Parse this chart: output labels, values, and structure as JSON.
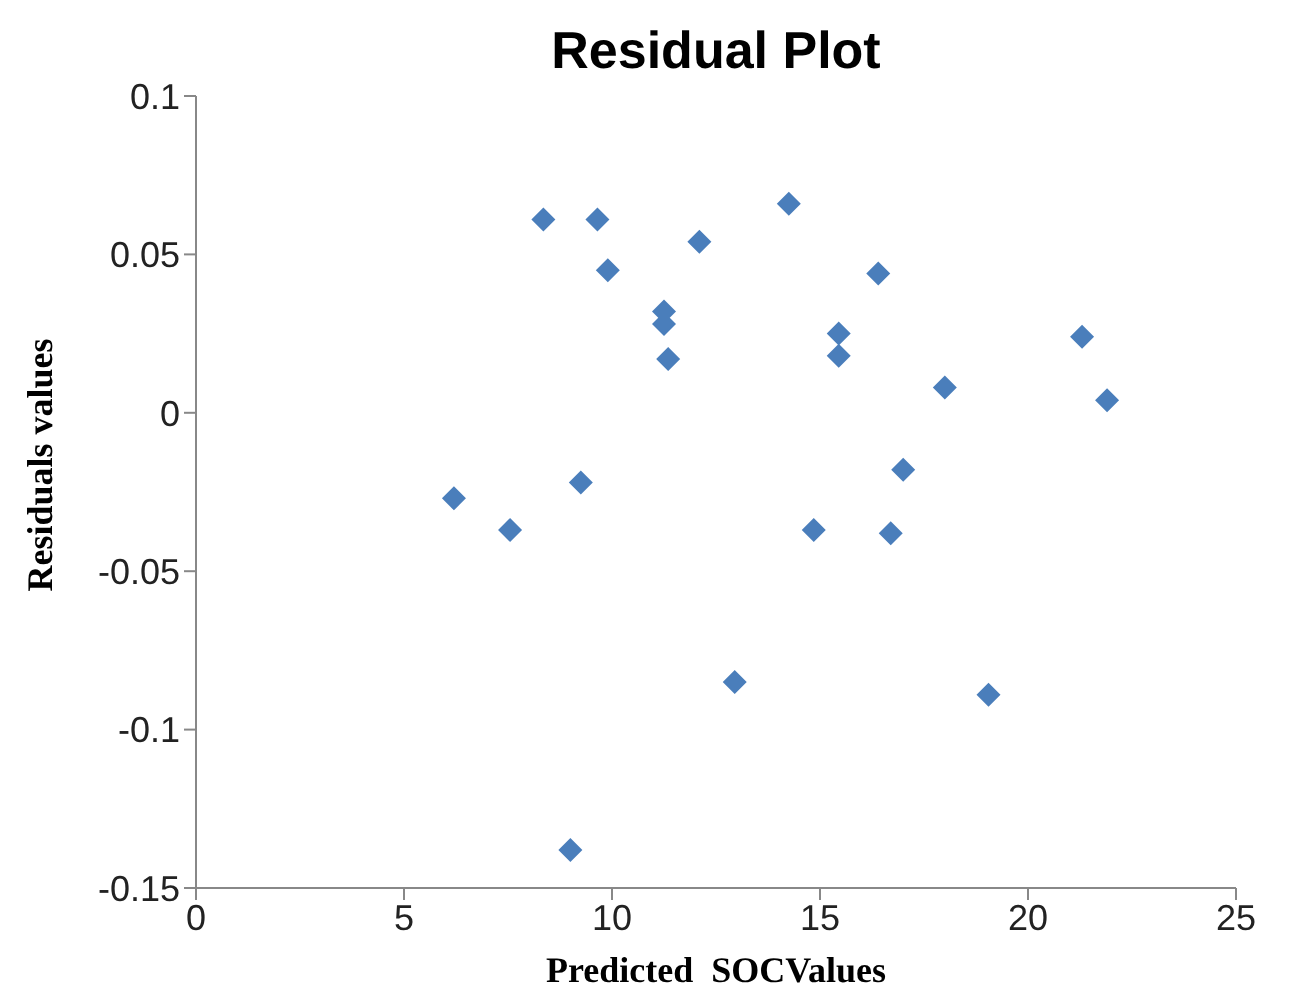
{
  "chart_data": {
    "type": "scatter",
    "title": "Residual Plot",
    "xlabel": "Predicted  SOCValues",
    "ylabel": "Residuals values",
    "marker": "diamond",
    "grid": false,
    "legend": false,
    "xlim": [
      0,
      25
    ],
    "xticks": [
      0,
      5,
      10,
      15,
      20,
      25
    ],
    "ylim": [
      -0.15,
      0.1
    ],
    "yticks": [
      -0.15,
      -0.1,
      -0.05,
      0,
      0.05,
      0.1
    ],
    "series": [
      {
        "color": "#4a7ebb",
        "x": [
          8.35,
          9.65,
          9.9,
          11.25,
          11.25,
          11.35,
          12.1,
          14.25,
          16.4,
          15.45,
          15.45,
          18.0,
          21.3,
          21.9,
          6.2,
          7.55,
          9.25,
          14.85,
          16.7,
          17.0,
          12.95,
          19.05,
          9.0
        ],
        "values": [
          0.061,
          0.061,
          0.045,
          0.032,
          0.028,
          0.017,
          0.054,
          0.066,
          0.044,
          0.025,
          0.018,
          0.008,
          0.024,
          0.004,
          -0.027,
          -0.037,
          -0.022,
          -0.037,
          -0.038,
          -0.018,
          -0.085,
          -0.089,
          -0.138
        ]
      }
    ]
  }
}
